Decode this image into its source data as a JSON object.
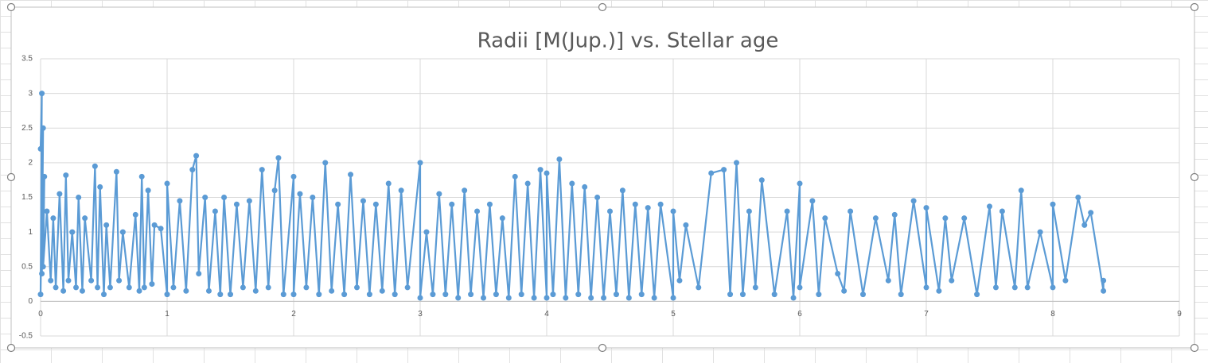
{
  "chart_data": {
    "type": "scatter-line",
    "title": "Radii [M(Jup.)] vs. Stellar age",
    "color": "#5b9bd5",
    "grid": true,
    "xlim": [
      0,
      9
    ],
    "xticks": [
      0,
      1,
      2,
      3,
      4,
      5,
      6,
      7,
      8,
      9
    ],
    "ylim": [
      -0.5,
      3.5
    ],
    "yticks": [
      -0.5,
      0,
      0.5,
      1,
      1.5,
      2,
      2.5,
      3,
      3.5
    ],
    "x": [
      0,
      0.01,
      0,
      0.02,
      0.01,
      0.03,
      0.02,
      0.05,
      0.08,
      0.1,
      0.12,
      0.15,
      0.18,
      0.2,
      0.22,
      0.25,
      0.28,
      0.3,
      0.33,
      0.35,
      0.4,
      0.43,
      0.45,
      0.47,
      0.5,
      0.52,
      0.55,
      0.6,
      0.62,
      0.65,
      0.7,
      0.75,
      0.78,
      0.8,
      0.82,
      0.85,
      0.88,
      0.9,
      0.95,
      1,
      1,
      1.05,
      1.1,
      1.15,
      1.2,
      1.23,
      1.25,
      1.3,
      1.33,
      1.38,
      1.42,
      1.45,
      1.5,
      1.55,
      1.6,
      1.65,
      1.7,
      1.75,
      1.8,
      1.85,
      1.88,
      1.92,
      2,
      2,
      2.05,
      2.1,
      2.15,
      2.2,
      2.25,
      2.3,
      2.35,
      2.4,
      2.45,
      2.5,
      2.55,
      2.6,
      2.65,
      2.7,
      2.75,
      2.8,
      2.85,
      2.9,
      3,
      3,
      3.05,
      3.1,
      3.15,
      3.2,
      3.25,
      3.3,
      3.35,
      3.4,
      3.45,
      3.5,
      3.55,
      3.6,
      3.65,
      3.7,
      3.75,
      3.8,
      3.85,
      3.9,
      3.95,
      4,
      4,
      4.05,
      4.1,
      4.15,
      4.2,
      4.25,
      4.3,
      4.35,
      4.4,
      4.45,
      4.5,
      4.55,
      4.6,
      4.65,
      4.7,
      4.75,
      4.8,
      4.85,
      4.9,
      5,
      5,
      5.05,
      5.1,
      5.2,
      5.3,
      5.4,
      5.45,
      5.5,
      5.55,
      5.6,
      5.65,
      5.7,
      5.8,
      5.9,
      5.95,
      6,
      6,
      6.1,
      6.15,
      6.2,
      6.3,
      6.35,
      6.4,
      6.5,
      6.6,
      6.7,
      6.75,
      6.8,
      6.9,
      7,
      7,
      7.1,
      7.15,
      7.2,
      7.3,
      7.4,
      7.5,
      7.55,
      7.6,
      7.7,
      7.75,
      7.8,
      7.9,
      8,
      8,
      8.1,
      8.2,
      8.25,
      8.3,
      8.4,
      8.4
    ],
    "values": [
      2.2,
      3.0,
      0.1,
      2.5,
      0.4,
      1.8,
      0.5,
      1.3,
      0.3,
      1.2,
      0.2,
      1.55,
      0.15,
      1.82,
      0.3,
      1.0,
      0.2,
      1.5,
      0.15,
      1.2,
      0.3,
      1.95,
      0.2,
      1.65,
      0.1,
      1.1,
      0.2,
      1.87,
      0.3,
      1.0,
      0.2,
      1.25,
      0.15,
      1.8,
      0.2,
      1.6,
      0.25,
      1.1,
      1.05,
      0.1,
      1.7,
      0.2,
      1.45,
      0.15,
      1.9,
      2.1,
      0.4,
      1.5,
      0.15,
      1.3,
      0.1,
      1.5,
      0.1,
      1.4,
      0.2,
      1.45,
      0.15,
      1.9,
      0.2,
      1.6,
      2.07,
      0.1,
      1.8,
      0.1,
      1.55,
      0.2,
      1.5,
      0.1,
      2.0,
      0.15,
      1.4,
      0.1,
      1.83,
      0.2,
      1.45,
      0.1,
      1.4,
      0.15,
      1.7,
      0.1,
      1.6,
      0.2,
      2.0,
      0.05,
      1.0,
      0.1,
      1.55,
      0.1,
      1.4,
      0.05,
      1.6,
      0.1,
      1.3,
      0.05,
      1.4,
      0.1,
      1.2,
      0.05,
      1.8,
      0.1,
      1.7,
      0.05,
      1.9,
      0.05,
      1.85,
      0.1,
      2.05,
      0.05,
      1.7,
      0.1,
      1.65,
      0.05,
      1.5,
      0.05,
      1.3,
      0.1,
      1.6,
      0.05,
      1.4,
      0.1,
      1.35,
      0.05,
      1.4,
      0.05,
      1.3,
      0.3,
      1.1,
      0.2,
      1.85,
      1.9,
      0.1,
      2.0,
      0.1,
      1.3,
      0.2,
      1.75,
      0.1,
      1.3,
      0.05,
      1.7,
      0.2,
      1.45,
      0.1,
      1.2,
      0.4,
      0.15,
      1.3,
      0.1,
      1.2,
      0.3,
      1.25,
      0.1,
      1.45,
      0.2,
      1.35,
      0.15,
      1.2,
      0.3,
      1.2,
      0.1,
      1.37,
      0.2,
      1.3,
      0.2,
      1.6,
      0.2,
      1.0,
      0.2,
      1.4,
      0.3,
      1.5,
      1.1,
      1.28,
      0.15,
      0.3
    ]
  }
}
